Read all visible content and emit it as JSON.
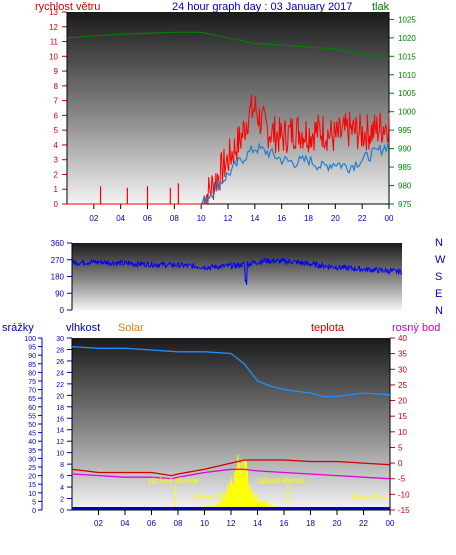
{
  "colors": {
    "wind_speed": "#ff0000",
    "wind_gust_avg": "#2080d0",
    "pressure": "#008000",
    "direction": "#0000ff",
    "humidity": "#1e90ff",
    "temperature": "#d00000",
    "dew_point": "#e000e0",
    "solar": "#ffff00",
    "rain": "#0000c0",
    "label_red": "#d00000",
    "label_blue": "#0000c0",
    "label_green": "#008000",
    "label_orange": "#e08000",
    "label_magenta": "#d000d0"
  },
  "chart_data": [
    {
      "type": "line",
      "title": "24 hour graph day : 03 January 2017",
      "left_axis_label": "rychlost větru",
      "right_axis_label": "tlak",
      "x_ticks": [
        "02",
        "04",
        "06",
        "08",
        "10",
        "12",
        "14",
        "16",
        "18",
        "20",
        "22",
        "00"
      ],
      "left_ticks": [
        "0",
        "1",
        "2",
        "3",
        "4",
        "5",
        "6",
        "7",
        "8",
        "9",
        "10",
        "11",
        "12",
        "13"
      ],
      "right_ticks": [
        "975",
        "980",
        "985",
        "990",
        "995",
        "1000",
        "1005",
        "1010",
        "1015",
        "1020",
        "1025"
      ],
      "ylim_left": [
        0,
        13
      ],
      "ylim_right": [
        975,
        1027
      ],
      "series": [
        {
          "key": "pressure",
          "hours": [
            0,
            4,
            8,
            10,
            12,
            14,
            16,
            20,
            22,
            24
          ],
          "values": [
            1020,
            1021,
            1021.5,
            1021.5,
            1020,
            1018.5,
            1018,
            1017,
            1015.5,
            1014.5
          ]
        },
        {
          "key": "wind_speed",
          "hours": [
            0,
            10,
            11,
            12,
            13,
            13.5,
            14,
            14.5,
            15,
            16,
            17,
            18,
            19,
            20,
            21,
            22,
            23,
            24
          ],
          "values": [
            0,
            0,
            1.5,
            3,
            4.5,
            6,
            6.5,
            5.5,
            5,
            4.5,
            5,
            4.8,
            5,
            4.5,
            5,
            4.8,
            5,
            5.5
          ]
        },
        {
          "key": "wind_gust_avg",
          "hours": [
            0,
            10,
            11,
            12,
            13,
            14,
            15,
            16,
            17,
            18,
            19,
            20,
            21,
            22,
            23,
            24
          ],
          "values": [
            0,
            0,
            1,
            2,
            3,
            3.8,
            3.5,
            3,
            2.8,
            3,
            2.5,
            2.8,
            2.5,
            3,
            3.5,
            4
          ]
        },
        {
          "key": "wind_spikes",
          "hours": [
            2.5,
            4.5,
            6.0,
            7.7,
            8.3
          ],
          "values": [
            1.2,
            1.1,
            1.2,
            1.1,
            1.4
          ]
        }
      ]
    },
    {
      "type": "line",
      "title": "",
      "right_letters": [
        "N",
        "W",
        "S",
        "E",
        "N"
      ],
      "left_ticks": [
        "0",
        "90",
        "180",
        "270",
        "360"
      ],
      "ylim": [
        0,
        360
      ],
      "series": [
        {
          "key": "direction",
          "hours": [
            0,
            2,
            4,
            6,
            8,
            10,
            12,
            13,
            14,
            16,
            18,
            20,
            22,
            24
          ],
          "values": [
            255,
            258,
            250,
            245,
            240,
            230,
            240,
            250,
            265,
            260,
            240,
            225,
            215,
            205
          ]
        }
      ]
    },
    {
      "type": "line",
      "title": "",
      "labels": {
        "rain": "srážky",
        "humidity": "vlhkost",
        "solar": "Solar",
        "temperature": "teplota",
        "dew_point": "rosný bod"
      },
      "rain_ticks": [
        "0",
        "5",
        "10",
        "15",
        "20",
        "25",
        "30",
        "35",
        "40",
        "45",
        "50",
        "55",
        "60",
        "65",
        "70",
        "75",
        "80",
        "85",
        "90",
        "95",
        "100"
      ],
      "hum_ticks": [
        "0",
        "2",
        "4",
        "6",
        "8",
        "10",
        "12",
        "14",
        "16",
        "18",
        "20",
        "22",
        "24",
        "26",
        "28",
        "30"
      ],
      "temp_ticks": [
        "-15",
        "-10",
        "-5",
        "0",
        "5",
        "10",
        "15",
        "20",
        "25",
        "30",
        "35",
        "40"
      ],
      "x_ticks": [
        "02",
        "04",
        "06",
        "08",
        "10",
        "12",
        "14",
        "16",
        "18",
        "20",
        "22",
        "00"
      ],
      "ylim_humidity": [
        0,
        100
      ],
      "ylim_temperature": [
        -15,
        40
      ],
      "annotations": [
        {
          "text": "východ slunce",
          "hour": 7.8
        },
        {
          "text": "západ slunce",
          "hour": 16.3
        },
        {
          "text": "Moon Rise",
          "hour": 11.2
        },
        {
          "text": "Moon Set",
          "hour": 22.6
        }
      ],
      "series": [
        {
          "key": "humidity",
          "hours": [
            0,
            2,
            4,
            6,
            8,
            10,
            12,
            13,
            14,
            15,
            16,
            18,
            19,
            20,
            22,
            24
          ],
          "values": [
            95,
            94,
            94,
            93,
            92,
            92,
            91,
            85,
            75,
            72,
            70,
            68,
            66,
            66,
            68,
            67
          ]
        },
        {
          "key": "temperature",
          "hours": [
            0,
            1,
            2,
            4,
            6,
            7.5,
            8,
            10,
            12,
            13,
            14,
            16,
            18,
            20,
            22,
            24
          ],
          "values": [
            -2,
            -2.5,
            -3,
            -3,
            -3,
            -4,
            -3.5,
            -2,
            0,
            1,
            1,
            1,
            0.5,
            0.5,
            0,
            -0.5
          ]
        },
        {
          "key": "dew_point",
          "hours": [
            0,
            2,
            4,
            6,
            7.5,
            8,
            10,
            12,
            13,
            14,
            16,
            18,
            20,
            22,
            24
          ],
          "values": [
            -3.5,
            -4,
            -4.5,
            -4.5,
            -5,
            -4.5,
            -3,
            -2,
            -2,
            -2.5,
            -3,
            -3.5,
            -4,
            -4.5,
            -5
          ]
        },
        {
          "key": "solar",
          "hours": [
            7.8,
            9,
            10,
            11,
            11.5,
            12,
            12.5,
            12.8,
            13,
            13.3,
            13.6,
            14,
            15,
            16.3
          ],
          "values": [
            0,
            1,
            2,
            4,
            8,
            18,
            30,
            38,
            32,
            22,
            12,
            8,
            3,
            0
          ]
        }
      ]
    }
  ]
}
